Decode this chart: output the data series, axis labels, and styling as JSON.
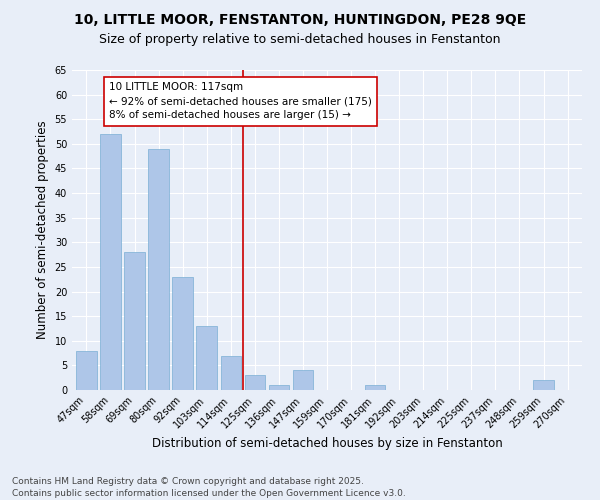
{
  "title": "10, LITTLE MOOR, FENSTANTON, HUNTINGDON, PE28 9QE",
  "subtitle": "Size of property relative to semi-detached houses in Fenstanton",
  "xlabel": "Distribution of semi-detached houses by size in Fenstanton",
  "ylabel": "Number of semi-detached properties",
  "categories": [
    "47sqm",
    "58sqm",
    "69sqm",
    "80sqm",
    "92sqm",
    "103sqm",
    "114sqm",
    "125sqm",
    "136sqm",
    "147sqm",
    "159sqm",
    "170sqm",
    "181sqm",
    "192sqm",
    "203sqm",
    "214sqm",
    "225sqm",
    "237sqm",
    "248sqm",
    "259sqm",
    "270sqm"
  ],
  "values": [
    8,
    52,
    28,
    49,
    23,
    13,
    7,
    3,
    1,
    4,
    0,
    0,
    1,
    0,
    0,
    0,
    0,
    0,
    0,
    2,
    0
  ],
  "bar_color": "#aec6e8",
  "bar_edge_color": "#7aafd4",
  "background_color": "#e8eef8",
  "grid_color": "#ffffff",
  "vline_x_index": 6.5,
  "vline_color": "#cc0000",
  "annotation_line1": "10 LITTLE MOOR: 117sqm",
  "annotation_line2": "← 92% of semi-detached houses are smaller (175)",
  "annotation_line3": "8% of semi-detached houses are larger (15) →",
  "annotation_box_color": "#ffffff",
  "annotation_box_edge": "#cc0000",
  "ylim": [
    0,
    65
  ],
  "yticks": [
    0,
    5,
    10,
    15,
    20,
    25,
    30,
    35,
    40,
    45,
    50,
    55,
    60,
    65
  ],
  "footer_line1": "Contains HM Land Registry data © Crown copyright and database right 2025.",
  "footer_line2": "Contains public sector information licensed under the Open Government Licence v3.0.",
  "title_fontsize": 10,
  "subtitle_fontsize": 9,
  "axis_label_fontsize": 8.5,
  "tick_fontsize": 7,
  "annotation_fontsize": 7.5,
  "footer_fontsize": 6.5
}
